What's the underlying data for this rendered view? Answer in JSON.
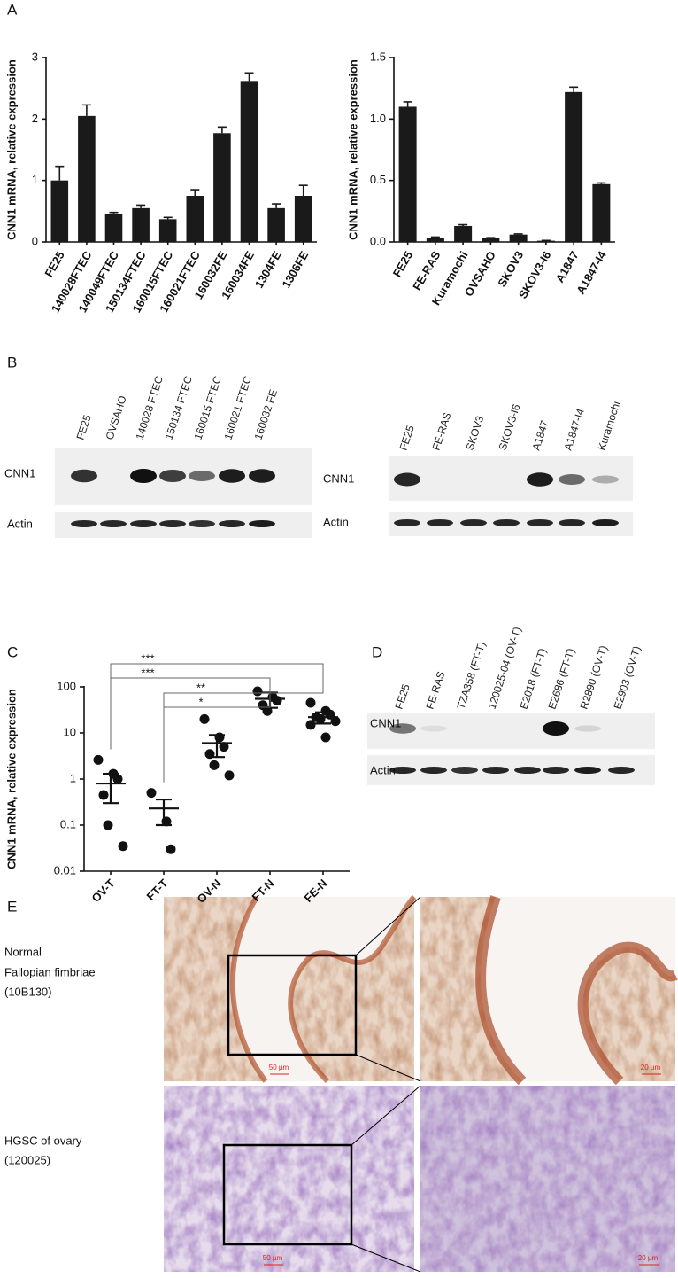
{
  "panel_labels": [
    "A",
    "B",
    "C",
    "D",
    "E"
  ],
  "chart_data": [
    {
      "type": "bar",
      "ylabel": "CNN1 mRNA, relative expression",
      "categories": [
        "FE25",
        "140028FTEC",
        "140049FTEC",
        "150134FTEC",
        "160015FTEC",
        "160021FTEC",
        "160032FE",
        "160034FE",
        "1304FE",
        "1306FE"
      ],
      "series": [
        {
          "color": "#1a1a1a",
          "values": [
            1.0,
            2.05,
            0.45,
            0.55,
            0.37,
            0.75,
            1.77,
            2.62,
            0.55,
            0.75
          ],
          "errors": [
            0.23,
            0.18,
            0.03,
            0.05,
            0.03,
            0.1,
            0.1,
            0.13,
            0.07,
            0.17
          ]
        }
      ],
      "ylim": [
        0,
        3
      ],
      "yticks": [
        0,
        1,
        2,
        3
      ]
    },
    {
      "type": "bar",
      "ylabel": "CNN1 mRNA, relative expression",
      "categories": [
        "FE25",
        "FE-RAS",
        "Kuramochi",
        "OVSAHO",
        "SKOV3",
        "SKOV3-I6",
        "A1847",
        "A1847-I4"
      ],
      "series": [
        {
          "color": "#1a1a1a",
          "values": [
            1.1,
            0.035,
            0.13,
            0.03,
            0.06,
            0.01,
            1.22,
            0.47
          ],
          "errors": [
            0.04,
            0.005,
            0.01,
            0.005,
            0.005,
            0.002,
            0.04,
            0.01
          ]
        }
      ],
      "ylim": [
        0,
        1.5
      ],
      "yticks": [
        {
          "value": 0,
          "label": "0.0"
        },
        {
          "value": 0.5,
          "label": "0.5"
        },
        {
          "value": 1,
          "label": "1.0"
        },
        {
          "value": 1.5,
          "label": "1.5"
        }
      ]
    },
    {
      "type": "scatter",
      "ylabel": "CNN1 mRNA, relative expression",
      "log_scale": true,
      "color": "#111111",
      "categories": [
        "OV-T",
        "FT-T",
        "OV-N",
        "FT-N",
        "FE-N"
      ],
      "groups": [
        {
          "points": [
            2.6,
            1.3,
            1.0,
            0.45,
            0.1,
            0.035
          ],
          "mean": 0.8,
          "sem": 0.5
        },
        {
          "points": [
            0.5,
            0.12,
            0.03
          ],
          "mean": 0.23,
          "sem": 0.13
        },
        {
          "points": [
            20,
            8,
            5,
            3.5,
            2,
            1.2
          ],
          "mean": 6,
          "sem": 3
        },
        {
          "points": [
            80,
            60,
            50,
            40,
            30
          ],
          "mean": 55,
          "sem": 20
        },
        {
          "points": [
            45,
            30,
            25,
            22,
            20,
            18,
            15,
            8
          ],
          "mean": 22,
          "sem": 6
        }
      ],
      "ylim": [
        0.01,
        100
      ],
      "yticks": [
        0.01,
        0.1,
        1,
        10,
        100
      ],
      "annotations": [
        {
          "from": 0,
          "to": 4,
          "label": "***"
        },
        {
          "from": 0,
          "to": 3,
          "label": "***"
        },
        {
          "from": 1,
          "to": 4,
          "label": "**"
        },
        {
          "from": 1,
          "to": 3,
          "label": "*"
        }
      ]
    }
  ],
  "blots": [
    {
      "lanes": [
        "FE25",
        "OVSAHO",
        "140028 FTEC",
        "150134 FTEC",
        "160015 FTEC",
        "160021 FTEC",
        "160032 FE"
      ],
      "rows": [
        "CNN1",
        "Actin"
      ]
    },
    {
      "lanes": [
        "FE25",
        "FE-RAS",
        "SKOV3",
        "SKOV3-I6",
        "A1847",
        "A1847-I4",
        "Kuramochi"
      ],
      "rows": [
        "CNN1",
        "Actin"
      ]
    },
    {
      "lanes": [
        "FE25",
        "FE-RAS",
        "TZA358 (FT-T)",
        "120025-04 (OV-T)",
        "E2018 (FT-T)",
        "E2686 (FT-T)",
        "R2890 (OV-T)",
        "E2903 (OV-T)"
      ],
      "rows": [
        "CNN1",
        "Actin"
      ]
    }
  ],
  "histology": [
    {
      "label_lines": [
        "Normal",
        "Fallopian fimbriae",
        "(10B130)"
      ],
      "scale_bars": [
        "50 µm",
        "20 µm"
      ]
    },
    {
      "label_lines": [
        "HGSC of ovary",
        "(120025)"
      ],
      "scale_bars": [
        "50 µm",
        "20 µm"
      ]
    }
  ]
}
